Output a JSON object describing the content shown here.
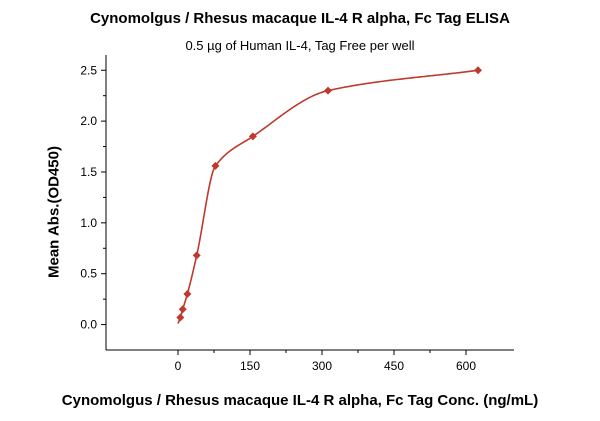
{
  "chart_data": {
    "type": "scatter",
    "title": "Cynomolgus / Rhesus macaque IL-4 R alpha, Fc Tag ELISA",
    "subtitle": "0.5 µg of Human IL-4, Tag Free per well",
    "xlabel": "Cynomolgus / Rhesus macaque IL-4 R alpha, Fc Tag Conc. (ng/mL)",
    "ylabel": "Mean Abs.(OD450)",
    "xlim": [
      -150,
      700
    ],
    "ylim": [
      -0.25,
      2.65
    ],
    "x_ticks": [
      "0",
      "150",
      "300",
      "450",
      "600"
    ],
    "y_ticks": [
      "0.0",
      "0.5",
      "1.0",
      "1.5",
      "2.0",
      "2.5"
    ],
    "grid": false,
    "legend": "none",
    "series": [
      {
        "points": [
          {
            "x": 4.9,
            "y": 0.07
          },
          {
            "x": 9.8,
            "y": 0.15
          },
          {
            "x": 19.5,
            "y": 0.3
          },
          {
            "x": 39,
            "y": 0.68
          },
          {
            "x": 78,
            "y": 1.56
          },
          {
            "x": 156,
            "y": 1.85
          },
          {
            "x": 312.5,
            "y": 2.3
          },
          {
            "x": 625,
            "y": 2.5
          }
        ],
        "fit": "4PL",
        "color": "#c0392b"
      }
    ]
  }
}
